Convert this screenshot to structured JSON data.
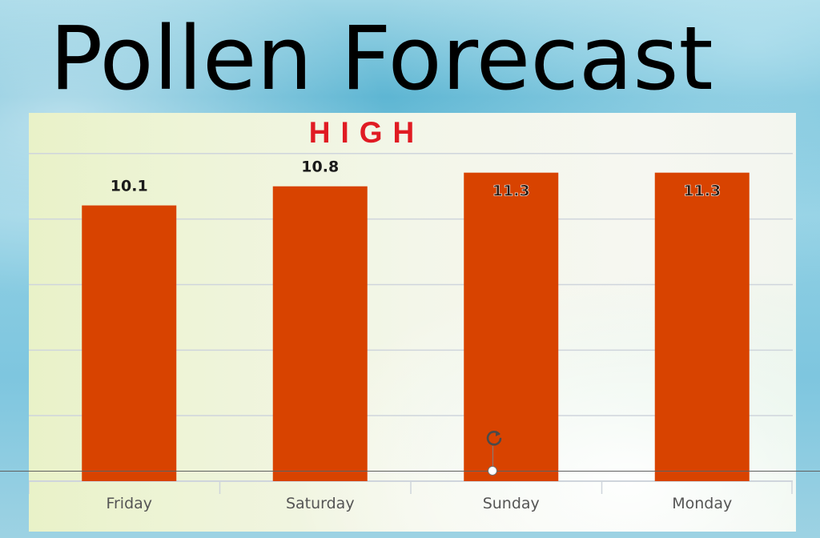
{
  "page_title": "Pollen Forecast",
  "icons": {
    "rotate_handle": "rotate-icon"
  },
  "colors": {
    "bar": "#d84300",
    "badge": "#e01b23",
    "gridline": "#cfd5dc",
    "title": "#000000"
  },
  "chart_data": {
    "type": "bar",
    "title": "",
    "xlabel": "",
    "ylabel": "",
    "categories": [
      "Friday",
      "Saturday",
      "Sunday",
      "Monday"
    ],
    "values": [
      10.1,
      10.8,
      11.3,
      11.3
    ],
    "data_labels": [
      "10.1",
      "10.8",
      "11.3",
      "11.3"
    ],
    "data_label_position": [
      "outside-end",
      "outside-end",
      "inside-end",
      "inside-end"
    ],
    "ylim": [
      0,
      12
    ],
    "gridlines": true,
    "legend": "none",
    "annotation": "HIGH"
  }
}
